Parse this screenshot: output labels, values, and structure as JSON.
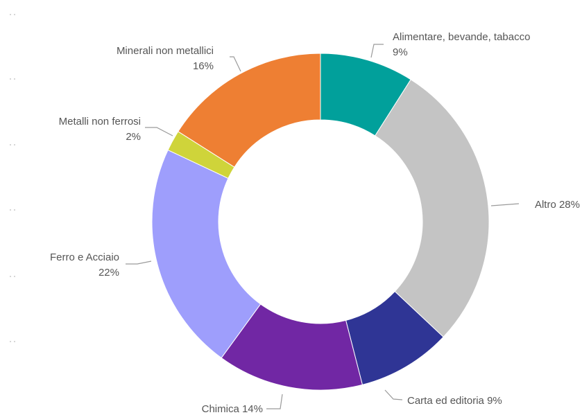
{
  "chart_data": {
    "type": "pie",
    "variant": "donut",
    "legend": "none",
    "labels_outside": true,
    "slices": [
      {
        "label": "Alimentare, bevande, tabacco",
        "percent_label": "9%",
        "value": 9,
        "color": "#01A09B"
      },
      {
        "label": "Altro",
        "percent_label": "28%",
        "value": 28,
        "color": "#C4C4C4"
      },
      {
        "label": "Carta ed editoria",
        "percent_label": "9%",
        "value": 9,
        "color": "#2F3595"
      },
      {
        "label": "Chimica",
        "percent_label": "14%",
        "value": 14,
        "color": "#7127A4"
      },
      {
        "label": "Ferro e Acciaio",
        "percent_label": "22%",
        "value": 22,
        "color": "#9E9EFC"
      },
      {
        "label": "Metalli non ferrosi",
        "percent_label": "2%",
        "value": 2,
        "color": "#CFD43A"
      },
      {
        "label": "Minerali non metallici",
        "percent_label": "16%",
        "value": 16,
        "color": "#EE7F33"
      }
    ]
  }
}
